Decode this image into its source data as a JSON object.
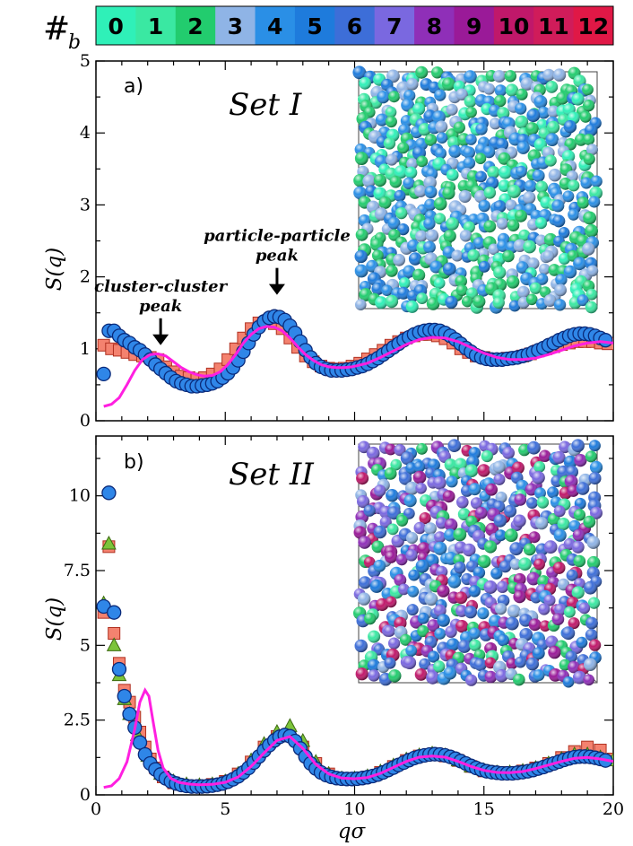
{
  "colorbar": {
    "title": "#",
    "subscript": "b",
    "labels": [
      "0",
      "1",
      "2",
      "3",
      "4",
      "5",
      "6",
      "7",
      "8",
      "9",
      "10",
      "11",
      "12"
    ],
    "colors": [
      "#2ff0b8",
      "#3ae8a2",
      "#22cc6e",
      "#8fb4e6",
      "#2a8fe6",
      "#1e7bdc",
      "#3d6ed8",
      "#7a68e0",
      "#8f2fb8",
      "#9a1a98",
      "#c0186a",
      "#d01c5a",
      "#e01846"
    ]
  },
  "chart_data": [
    {
      "type": "scatter",
      "panel": "a)",
      "title": "Set I",
      "xlabel": "",
      "ylabel": "S(q)",
      "xlim": [
        0,
        20
      ],
      "ylim": [
        0,
        5
      ],
      "yticks": [
        "0",
        "1",
        "2",
        "3",
        "4",
        "5"
      ],
      "annotations": [
        {
          "text": [
            "cluster-cluster",
            "peak"
          ],
          "x": 2.5,
          "y": 1.05
        },
        {
          "text": [
            "particle-particle",
            "peak"
          ],
          "x": 7.0,
          "y": 1.75
        }
      ],
      "series": [
        {
          "marker": "square",
          "color": "#f4826f",
          "x": [
            0.3,
            0.6,
            0.9,
            1.2,
            1.5,
            1.8,
            2.1,
            2.4,
            2.7,
            3.0,
            3.3,
            3.6,
            3.9,
            4.2,
            4.5,
            4.8,
            5.1,
            5.4,
            5.7,
            6.0,
            6.3,
            6.6,
            6.9,
            7.2,
            7.5,
            7.8,
            8.1,
            8.4,
            8.7,
            9.0,
            9.3,
            9.6,
            9.9,
            10.2,
            10.5,
            10.8,
            11.1,
            11.4,
            11.7,
            12.0,
            12.3,
            12.6,
            12.9,
            13.2,
            13.5,
            13.8,
            14.1,
            14.4,
            14.7,
            15.0,
            15.3,
            15.6,
            15.9,
            16.2,
            16.5,
            16.8,
            17.1,
            17.4,
            17.7,
            18.0,
            18.3,
            18.6,
            18.9,
            19.2,
            19.5,
            19.8
          ],
          "y": [
            1.05,
            1.0,
            0.98,
            0.95,
            0.92,
            0.9,
            0.88,
            0.85,
            0.75,
            0.68,
            0.62,
            0.6,
            0.58,
            0.6,
            0.65,
            0.72,
            0.85,
            1.0,
            1.15,
            1.28,
            1.36,
            1.38,
            1.35,
            1.28,
            1.15,
            1.02,
            0.9,
            0.82,
            0.76,
            0.73,
            0.72,
            0.73,
            0.76,
            0.8,
            0.86,
            0.92,
            0.98,
            1.05,
            1.1,
            1.15,
            1.18,
            1.2,
            1.2,
            1.18,
            1.14,
            1.08,
            1.0,
            0.95,
            0.9,
            0.88,
            0.86,
            0.86,
            0.87,
            0.88,
            0.9,
            0.93,
            0.97,
            1.0,
            1.03,
            1.06,
            1.08,
            1.1,
            1.1,
            1.1,
            1.08,
            1.07
          ]
        },
        {
          "marker": "circle",
          "color": "#2f86e8",
          "x": [
            0.3,
            0.5,
            0.7,
            0.9,
            1.1,
            1.3,
            1.5,
            1.7,
            1.9,
            2.1,
            2.3,
            2.5,
            2.7,
            2.9,
            3.1,
            3.3,
            3.5,
            3.7,
            3.9,
            4.1,
            4.3,
            4.5,
            4.7,
            4.9,
            5.1,
            5.3,
            5.5,
            5.7,
            5.9,
            6.1,
            6.3,
            6.5,
            6.7,
            6.9,
            7.1,
            7.3,
            7.5,
            7.7,
            7.9,
            8.1,
            8.3,
            8.5,
            8.7,
            8.9,
            9.1,
            9.3,
            9.5,
            9.7,
            9.9,
            10.1,
            10.3,
            10.5,
            10.7,
            10.9,
            11.1,
            11.3,
            11.5,
            11.7,
            11.9,
            12.1,
            12.3,
            12.5,
            12.7,
            12.9,
            13.1,
            13.3,
            13.5,
            13.7,
            13.9,
            14.1,
            14.3,
            14.5,
            14.7,
            14.9,
            15.1,
            15.3,
            15.5,
            15.7,
            15.9,
            16.1,
            16.3,
            16.5,
            16.7,
            16.9,
            17.1,
            17.3,
            17.5,
            17.7,
            17.9,
            18.1,
            18.3,
            18.5,
            18.7,
            18.9,
            19.1,
            19.3,
            19.5,
            19.7
          ],
          "y": [
            0.65,
            1.25,
            1.25,
            1.18,
            1.12,
            1.08,
            1.02,
            0.98,
            0.92,
            0.85,
            0.78,
            0.72,
            0.66,
            0.6,
            0.55,
            0.52,
            0.5,
            0.48,
            0.48,
            0.49,
            0.5,
            0.52,
            0.55,
            0.6,
            0.66,
            0.74,
            0.84,
            0.96,
            1.08,
            1.2,
            1.3,
            1.38,
            1.43,
            1.45,
            1.44,
            1.4,
            1.32,
            1.22,
            1.1,
            0.98,
            0.88,
            0.8,
            0.75,
            0.72,
            0.7,
            0.7,
            0.7,
            0.71,
            0.72,
            0.74,
            0.76,
            0.79,
            0.83,
            0.87,
            0.92,
            0.97,
            1.02,
            1.07,
            1.12,
            1.16,
            1.2,
            1.23,
            1.25,
            1.26,
            1.26,
            1.25,
            1.22,
            1.18,
            1.13,
            1.07,
            1.01,
            0.96,
            0.91,
            0.88,
            0.86,
            0.85,
            0.85,
            0.85,
            0.86,
            0.87,
            0.88,
            0.9,
            0.92,
            0.95,
            0.98,
            1.01,
            1.05,
            1.08,
            1.12,
            1.15,
            1.18,
            1.2,
            1.21,
            1.21,
            1.2,
            1.18,
            1.15,
            1.12
          ]
        },
        {
          "marker": "line",
          "color": "#ff1fe0",
          "x": [
            0.3,
            0.6,
            0.9,
            1.2,
            1.5,
            1.8,
            2.1,
            2.4,
            2.7,
            3.0,
            3.3,
            3.6,
            3.9,
            4.2,
            4.5,
            4.8,
            5.1,
            5.4,
            5.7,
            6.0,
            6.3,
            6.6,
            6.9,
            7.2,
            7.5,
            7.8,
            8.1,
            8.4,
            8.7,
            9.0,
            9.3,
            9.6,
            9.9,
            10.5,
            11.0,
            11.5,
            12.0,
            12.5,
            13.0,
            13.5,
            14.0,
            14.5,
            15.0,
            15.5,
            16.0,
            16.5,
            17.0,
            17.5,
            18.0,
            18.5,
            19.0,
            19.5,
            20.0
          ],
          "y": [
            0.2,
            0.23,
            0.32,
            0.5,
            0.7,
            0.85,
            0.92,
            0.93,
            0.9,
            0.82,
            0.74,
            0.68,
            0.64,
            0.62,
            0.63,
            0.68,
            0.78,
            0.92,
            1.08,
            1.2,
            1.28,
            1.31,
            1.3,
            1.25,
            1.15,
            1.03,
            0.92,
            0.84,
            0.78,
            0.75,
            0.74,
            0.74,
            0.75,
            0.8,
            0.88,
            0.97,
            1.06,
            1.13,
            1.16,
            1.15,
            1.1,
            1.02,
            0.94,
            0.88,
            0.85,
            0.85,
            0.87,
            0.92,
            0.98,
            1.04,
            1.08,
            1.1,
            1.08
          ]
        }
      ]
    },
    {
      "type": "scatter",
      "panel": "b)",
      "title": "Set II",
      "xlabel": "qσ",
      "ylabel": "S(q)",
      "xlim": [
        0,
        20
      ],
      "ylim": [
        0,
        12
      ],
      "xticks": [
        "0",
        "5",
        "10",
        "15",
        "20"
      ],
      "yticks": [
        "0",
        "2.5",
        "5",
        "7.5",
        "10"
      ],
      "series": [
        {
          "marker": "square",
          "color": "#f4826f",
          "x": [
            0.3,
            0.5,
            0.7,
            0.9,
            1.1,
            1.3,
            1.5,
            1.7,
            1.9,
            2.1,
            2.3,
            2.6,
            3.0,
            3.5,
            4.0,
            4.5,
            5.0,
            5.5,
            6.0,
            6.5,
            7.0,
            7.5,
            8.0,
            8.5,
            9.0,
            9.5,
            10.0,
            10.5,
            11.0,
            11.5,
            12.0,
            12.5,
            13.0,
            13.5,
            14.0,
            14.5,
            15.0,
            15.5,
            16.0,
            16.5,
            17.0,
            17.5,
            18.0,
            18.5,
            19.0,
            19.5,
            20.0
          ],
          "y": [
            6.1,
            8.3,
            5.4,
            4.4,
            3.5,
            3.1,
            2.6,
            2.1,
            1.6,
            1.2,
            0.9,
            0.6,
            0.4,
            0.3,
            0.3,
            0.35,
            0.45,
            0.7,
            1.1,
            1.6,
            1.95,
            2.0,
            1.6,
            1.05,
            0.7,
            0.55,
            0.55,
            0.6,
            0.75,
            0.95,
            1.15,
            1.3,
            1.35,
            1.3,
            1.15,
            0.95,
            0.8,
            0.75,
            0.75,
            0.8,
            0.9,
            1.05,
            1.25,
            1.45,
            1.6,
            1.5,
            1.2
          ]
        },
        {
          "marker": "triangle",
          "color": "#7cc43a",
          "x": [
            0.3,
            0.5,
            0.7,
            0.9,
            1.1,
            1.3,
            1.6,
            2.0,
            2.5,
            3.0,
            3.5,
            4.0,
            4.5,
            5.0,
            5.5,
            6.0,
            6.5,
            7.0,
            7.5,
            8.0,
            8.5,
            9.0,
            9.5,
            10.0,
            10.5,
            11.0,
            11.5,
            12.0,
            12.5,
            13.0,
            13.5,
            14.0,
            14.5,
            15.0,
            15.5,
            16.0,
            16.5,
            17.0,
            17.5,
            18.0,
            18.5,
            19.0,
            19.5,
            20.0
          ],
          "y": [
            6.4,
            8.4,
            5.0,
            4.0,
            3.2,
            2.7,
            2.0,
            1.3,
            0.7,
            0.45,
            0.35,
            0.32,
            0.35,
            0.45,
            0.7,
            1.15,
            1.7,
            2.1,
            2.3,
            1.8,
            1.1,
            0.7,
            0.55,
            0.55,
            0.62,
            0.78,
            0.98,
            1.18,
            1.32,
            1.38,
            1.32,
            1.15,
            0.95,
            0.82,
            0.75,
            0.75,
            0.8,
            0.9,
            1.05,
            1.2,
            1.35,
            1.35,
            1.25,
            1.15
          ]
        },
        {
          "marker": "circle",
          "color": "#2f86e8",
          "x": [
            0.3,
            0.5,
            0.7,
            0.9,
            1.1,
            1.3,
            1.5,
            1.7,
            1.9,
            2.1,
            2.3,
            2.5,
            2.7,
            2.9,
            3.1,
            3.3,
            3.5,
            3.7,
            3.9,
            4.1,
            4.3,
            4.5,
            4.7,
            4.9,
            5.1,
            5.3,
            5.5,
            5.7,
            5.9,
            6.1,
            6.3,
            6.5,
            6.7,
            6.9,
            7.1,
            7.3,
            7.5,
            7.7,
            7.9,
            8.1,
            8.3,
            8.5,
            8.7,
            8.9,
            9.1,
            9.3,
            9.5,
            9.7,
            9.9,
            10.1,
            10.3,
            10.5,
            10.7,
            10.9,
            11.1,
            11.3,
            11.5,
            11.7,
            11.9,
            12.1,
            12.3,
            12.5,
            12.7,
            12.9,
            13.1,
            13.3,
            13.5,
            13.7,
            13.9,
            14.1,
            14.3,
            14.5,
            14.7,
            14.9,
            15.1,
            15.3,
            15.5,
            15.7,
            15.9,
            16.1,
            16.3,
            16.5,
            16.7,
            16.9,
            17.1,
            17.3,
            17.5,
            17.7,
            17.9,
            18.1,
            18.3,
            18.5,
            18.7,
            18.9,
            19.1,
            19.3,
            19.5,
            19.7
          ],
          "y": [
            6.3,
            10.1,
            6.1,
            4.2,
            3.3,
            2.7,
            2.25,
            1.75,
            1.35,
            1.05,
            0.85,
            0.68,
            0.55,
            0.45,
            0.38,
            0.33,
            0.3,
            0.28,
            0.28,
            0.28,
            0.29,
            0.31,
            0.34,
            0.38,
            0.44,
            0.52,
            0.62,
            0.75,
            0.9,
            1.08,
            1.28,
            1.48,
            1.66,
            1.82,
            1.94,
            2.0,
            1.96,
            1.8,
            1.55,
            1.28,
            1.05,
            0.88,
            0.75,
            0.66,
            0.6,
            0.56,
            0.54,
            0.53,
            0.53,
            0.54,
            0.56,
            0.59,
            0.63,
            0.68,
            0.75,
            0.83,
            0.91,
            1.0,
            1.08,
            1.16,
            1.23,
            1.28,
            1.32,
            1.35,
            1.36,
            1.35,
            1.32,
            1.27,
            1.21,
            1.13,
            1.05,
            0.97,
            0.9,
            0.84,
            0.79,
            0.76,
            0.74,
            0.72,
            0.72,
            0.72,
            0.74,
            0.76,
            0.79,
            0.83,
            0.88,
            0.93,
            0.99,
            1.05,
            1.11,
            1.17,
            1.22,
            1.26,
            1.28,
            1.28,
            1.27,
            1.24,
            1.2,
            1.15
          ]
        },
        {
          "marker": "line",
          "color": "#ff1fe0",
          "x": [
            0.3,
            0.6,
            0.9,
            1.2,
            1.5,
            1.7,
            1.9,
            2.05,
            2.2,
            2.4,
            2.6,
            2.9,
            3.2,
            3.6,
            4.0,
            4.5,
            5.0,
            5.5,
            6.0,
            6.5,
            7.0,
            7.5,
            8.0,
            8.5,
            9.0,
            9.5,
            10.0,
            10.5,
            11.0,
            11.5,
            12.0,
            12.5,
            13.0,
            13.5,
            14.0,
            14.5,
            15.0,
            15.5,
            16.0,
            16.5,
            17.0,
            17.5,
            18.0,
            18.5,
            19.0,
            19.5,
            20.0
          ],
          "y": [
            0.25,
            0.3,
            0.55,
            1.1,
            2.2,
            3.1,
            3.5,
            3.3,
            2.5,
            1.5,
            0.9,
            0.55,
            0.42,
            0.36,
            0.34,
            0.35,
            0.42,
            0.6,
            0.95,
            1.4,
            1.82,
            1.95,
            1.55,
            1.02,
            0.7,
            0.56,
            0.54,
            0.58,
            0.72,
            0.92,
            1.12,
            1.26,
            1.3,
            1.26,
            1.12,
            0.95,
            0.82,
            0.75,
            0.74,
            0.78,
            0.88,
            1.0,
            1.12,
            1.22,
            1.25,
            1.2,
            1.12
          ]
        }
      ]
    }
  ]
}
